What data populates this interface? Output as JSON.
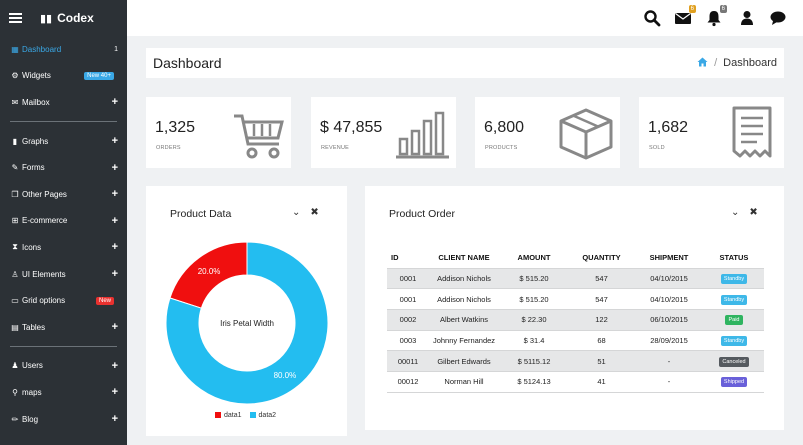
{
  "brand": {
    "name": "Codex"
  },
  "sidebar": {
    "items": [
      {
        "label": "Dashboard",
        "icon": "grid-icon",
        "count": "1",
        "active": true
      },
      {
        "label": "Widgets",
        "icon": "gear-icon",
        "badge": "New 40+"
      },
      {
        "label": "Mailbox",
        "icon": "envelope-icon"
      },
      {
        "label": "Graphs",
        "icon": "bar-chart-icon"
      },
      {
        "label": "Forms",
        "icon": "edit-icon"
      },
      {
        "label": "Other Pages",
        "icon": "pages-icon"
      },
      {
        "label": "E-commerce",
        "icon": "cart-icon"
      },
      {
        "label": "Icons",
        "icon": "hourglass-icon"
      },
      {
        "label": "UI Elements",
        "icon": "user-icon"
      },
      {
        "label": "Grid options",
        "icon": "laptop-icon",
        "badge": "New"
      },
      {
        "label": "Tables",
        "icon": "table-icon"
      },
      {
        "label": "Users",
        "icon": "users-icon"
      },
      {
        "label": "maps",
        "icon": "map-marker-icon"
      },
      {
        "label": "Blog",
        "icon": "pencil-icon"
      }
    ]
  },
  "topbar": {
    "mail_count": "6",
    "notif_count": "6"
  },
  "page": {
    "title": "Dashboard",
    "breadcrumb": "Dashboard"
  },
  "stats": [
    {
      "value": "1,325",
      "label": "ORDERS",
      "icon": "cart-icon"
    },
    {
      "value": "$ 47,855",
      "label": "REVENUE",
      "icon": "bar-chart-icon"
    },
    {
      "value": "6,800",
      "label": "PRODUCTS",
      "icon": "box-icon"
    },
    {
      "value": "1,682",
      "label": "SOLD",
      "icon": "receipt-icon"
    }
  ],
  "product_data": {
    "title": "Product Data",
    "center_label": "Iris Petal Width"
  },
  "chart_data": {
    "type": "pie",
    "donut": true,
    "title": "Iris Petal Width",
    "series": [
      {
        "name": "data1",
        "value": 20.0,
        "label": "20.0%",
        "color": "#f00f0f"
      },
      {
        "name": "data2",
        "value": 80.0,
        "label": "80.0%",
        "color": "#23bdf0"
      }
    ],
    "legend_position": "bottom"
  },
  "product_order": {
    "title": "Product Order",
    "columns": [
      "ID",
      "CLIENT NAME",
      "AMOUNT",
      "QUANTITY",
      "SHIPMENT",
      "STATUS"
    ],
    "rows": [
      {
        "id": "0001",
        "client": "Addison Nichols",
        "amount": "$ 515.20",
        "qty": "547",
        "shipment": "04/10/2015",
        "status": "Standby",
        "status_type": "standby"
      },
      {
        "id": "0001",
        "client": "Addison Nichols",
        "amount": "$ 515.20",
        "qty": "547",
        "shipment": "04/10/2015",
        "status": "Standby",
        "status_type": "standby"
      },
      {
        "id": "0002",
        "client": "Albert Watkins",
        "amount": "$ 22.30",
        "qty": "122",
        "shipment": "06/10/2015",
        "status": "Paid",
        "status_type": "paid"
      },
      {
        "id": "0003",
        "client": "Johnny Fernandez",
        "amount": "$ 31.4",
        "qty": "68",
        "shipment": "28/09/2015",
        "status": "Standby",
        "status_type": "standby"
      },
      {
        "id": "00011",
        "client": "Gilbert Edwards",
        "amount": "$ 5115.12",
        "qty": "51",
        "shipment": "-",
        "status": "Canceled",
        "status_type": "canceled"
      },
      {
        "id": "00012",
        "client": "Norman Hill",
        "amount": "$ 5124.13",
        "qty": "41",
        "shipment": "-",
        "status": "Shipped",
        "status_type": "shipped"
      }
    ]
  }
}
